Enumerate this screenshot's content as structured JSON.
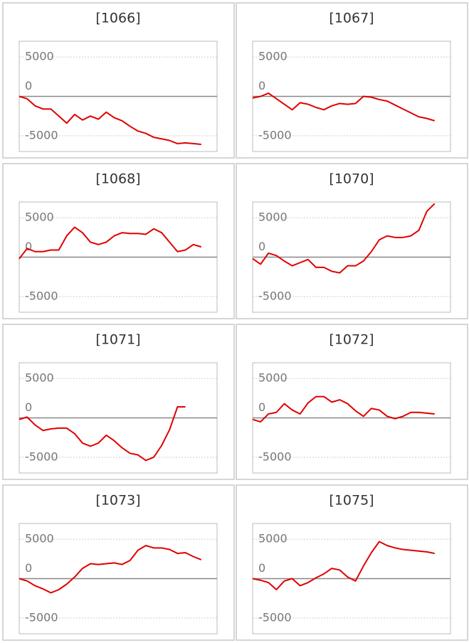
{
  "chart_data": [
    {
      "type": "line",
      "title": "[1066]",
      "color": "#e00000",
      "ylim": [
        -7000,
        7000
      ],
      "yticks": [
        5000,
        0,
        -5000
      ],
      "xlim": [
        0,
        25
      ],
      "values": [
        0,
        -300,
        -1200,
        -1600,
        -1600,
        -2500,
        -3400,
        -2300,
        -3000,
        -2500,
        -2900,
        -2000,
        -2700,
        -3100,
        -3800,
        -4400,
        -4700,
        -5200,
        -5400,
        -5600,
        -6000,
        -5900,
        -6000,
        -6100
      ]
    },
    {
      "type": "line",
      "title": "[1067]",
      "color": "#e00000",
      "ylim": [
        -7000,
        7000
      ],
      "yticks": [
        5000,
        0,
        -5000
      ],
      "xlim": [
        0,
        25
      ],
      "values": [
        -200,
        0,
        400,
        -300,
        -1000,
        -1700,
        -800,
        -1000,
        -1400,
        -1700,
        -1200,
        -900,
        -1000,
        -900,
        0,
        -100,
        -400,
        -600,
        -1100,
        -1600,
        -2100,
        -2600,
        -2800,
        -3100
      ]
    },
    {
      "type": "line",
      "title": "[1068]",
      "color": "#e00000",
      "ylim": [
        -7000,
        7000
      ],
      "yticks": [
        5000,
        0,
        -5000
      ],
      "xlim": [
        0,
        25
      ],
      "values": [
        -200,
        1100,
        700,
        700,
        900,
        900,
        2700,
        3800,
        3100,
        1900,
        1600,
        1900,
        2700,
        3100,
        3000,
        3000,
        2900,
        3600,
        3100,
        1900,
        700,
        900,
        1600,
        1300
      ]
    },
    {
      "type": "line",
      "title": "[1070]",
      "color": "#e00000",
      "ylim": [
        -7000,
        7000
      ],
      "yticks": [
        5000,
        0,
        -5000
      ],
      "xlim": [
        0,
        25
      ],
      "values": [
        -200,
        -900,
        500,
        200,
        -500,
        -1100,
        -700,
        -300,
        -1300,
        -1300,
        -1800,
        -2000,
        -1100,
        -1100,
        -500,
        700,
        2200,
        2700,
        2500,
        2500,
        2700,
        3400,
        5800,
        6800
      ]
    },
    {
      "type": "line",
      "title": "[1071]",
      "color": "#e00000",
      "ylim": [
        -7000,
        7000
      ],
      "yticks": [
        5000,
        0,
        -5000
      ],
      "xlim": [
        0,
        25
      ],
      "values": [
        -200,
        100,
        -900,
        -1600,
        -1400,
        -1300,
        -1300,
        -2000,
        -3200,
        -3600,
        -3200,
        -2200,
        -2900,
        -3800,
        -4500,
        -4700,
        -5400,
        -5000,
        -3500,
        -1500,
        1400,
        1400
      ]
    },
    {
      "type": "line",
      "title": "[1072]",
      "color": "#e00000",
      "ylim": [
        -7000,
        7000
      ],
      "yticks": [
        5000,
        0,
        -5000
      ],
      "xlim": [
        0,
        25
      ],
      "values": [
        -200,
        -500,
        500,
        700,
        1800,
        1000,
        500,
        1900,
        2700,
        2700,
        2000,
        2300,
        1800,
        900,
        200,
        1200,
        1000,
        200,
        -100,
        200,
        700,
        700,
        600,
        500
      ]
    },
    {
      "type": "line",
      "title": "[1073]",
      "color": "#e00000",
      "ylim": [
        -7000,
        7000
      ],
      "yticks": [
        5000,
        0,
        -5000
      ],
      "xlim": [
        0,
        25
      ],
      "values": [
        0,
        -300,
        -900,
        -1300,
        -1800,
        -1400,
        -700,
        200,
        1300,
        1900,
        1800,
        1900,
        2000,
        1800,
        2300,
        3600,
        4200,
        3900,
        3900,
        3700,
        3200,
        3300,
        2800,
        2400
      ]
    },
    {
      "type": "line",
      "title": "[1075]",
      "color": "#e00000",
      "ylim": [
        -7000,
        7000
      ],
      "yticks": [
        5000,
        0,
        -5000
      ],
      "xlim": [
        0,
        25
      ],
      "values": [
        0,
        -200,
        -500,
        -1400,
        -300,
        0,
        -900,
        -500,
        100,
        600,
        1300,
        1100,
        200,
        -300,
        1600,
        3300,
        4700,
        4200,
        3900,
        3700,
        3600,
        3500,
        3400,
        3200
      ]
    }
  ]
}
